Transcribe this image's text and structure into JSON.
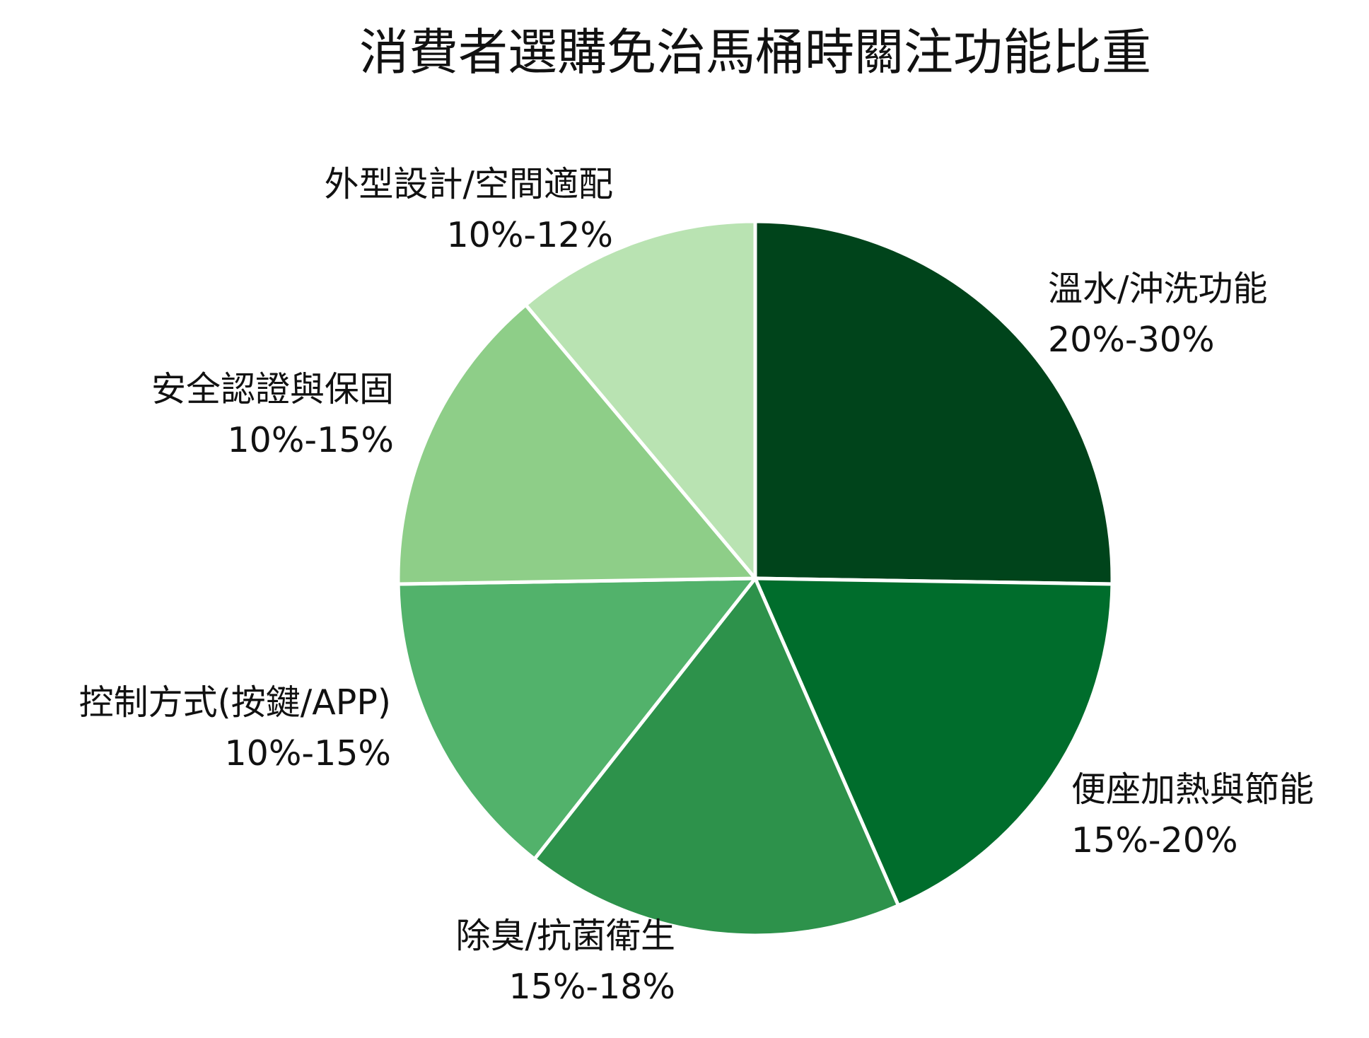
{
  "chart_data": {
    "type": "pie",
    "title": "消費者選購免治馬桶時關注功能比重",
    "slices": [
      {
        "name": "溫水/沖洗功能",
        "range": "20%-30%",
        "value": 25,
        "color": "#00441b"
      },
      {
        "name": "便座加熱與節能",
        "range": "15%-20%",
        "value": 18,
        "color": "#006d2c"
      },
      {
        "name": "除臭/抗菌衛生",
        "range": "15%-18%",
        "value": 17,
        "color": "#2d924b"
      },
      {
        "name": "控制方式(按鍵/APP)",
        "range": "10%-15%",
        "value": 14,
        "color": "#52b26b"
      },
      {
        "name": "安全認證與保固",
        "range": "10%-15%",
        "value": 14,
        "color": "#8ece88"
      },
      {
        "name": "外型設計/空間適配",
        "range": "10%-12%",
        "value": 11,
        "color": "#b9e3b2"
      }
    ],
    "start_angle_deg": 0,
    "direction": "clockwise",
    "legend": "none"
  }
}
